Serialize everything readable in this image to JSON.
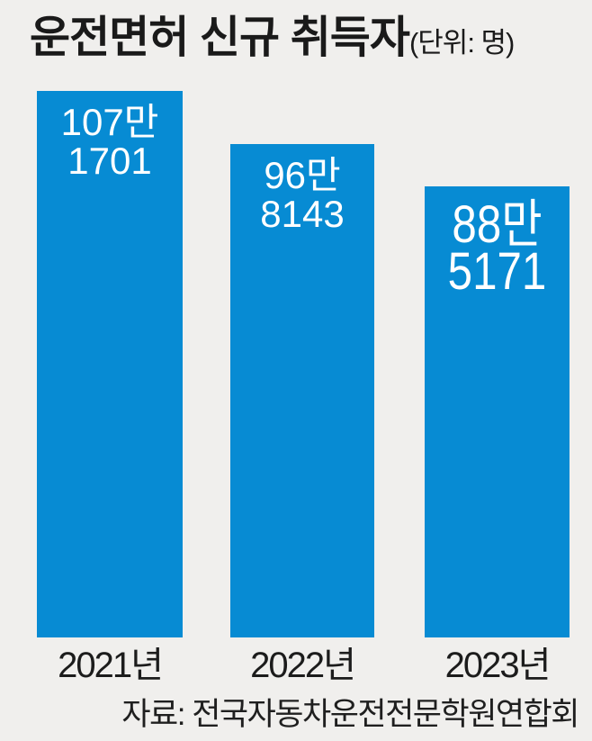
{
  "title": "운전면허 신규 취득자",
  "unit": "(단위: 명)",
  "source": "자료: 전국자동차운전전문학원연합회",
  "colors": {
    "bar": "#078bd3",
    "background": "#f0efed",
    "title_text": "#1a1a1a",
    "bar_label_text": "#ffffff"
  },
  "chart_data": {
    "type": "bar",
    "title": "운전면허 신규 취득자",
    "unit_label": "(단위: 명)",
    "categories": [
      "2021년",
      "2022년",
      "2023년"
    ],
    "values": [
      1071701,
      968143,
      885171
    ],
    "bar_labels": [
      [
        "107만",
        "1701"
      ],
      [
        "96만",
        "8143"
      ],
      [
        "88만",
        "5171"
      ]
    ],
    "emphasized_index": 2,
    "ylim": [
      0,
      1071701
    ],
    "source": "자료: 전국자동차운전전문학원연합회"
  }
}
